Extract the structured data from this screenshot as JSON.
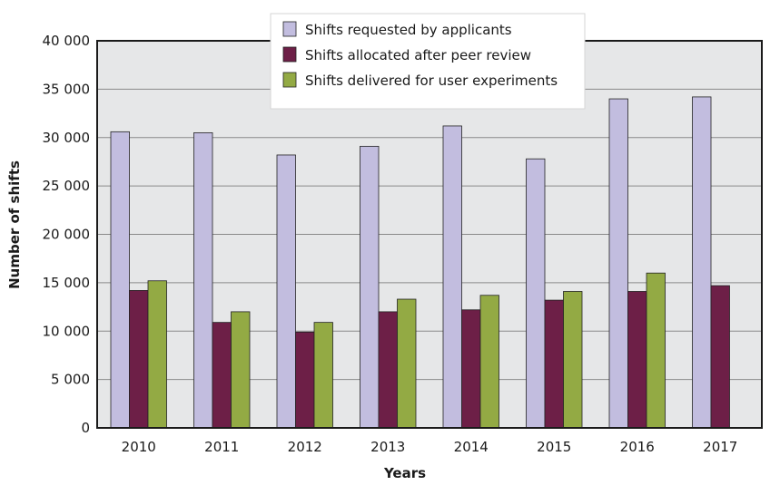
{
  "chart_data": {
    "type": "bar",
    "title": "",
    "xlabel": "Years",
    "ylabel": "Number of shifts",
    "ylim": [
      0,
      40000
    ],
    "yticks": [
      0,
      5000,
      10000,
      15000,
      20000,
      25000,
      30000,
      35000,
      40000
    ],
    "ytick_labels": [
      "0",
      "5 000",
      "10 000",
      "15 000",
      "20 000",
      "25 000",
      "30 000",
      "35 000",
      "40 000"
    ],
    "grid": true,
    "legend_position": "top-center",
    "categories": [
      "2010",
      "2011",
      "2012",
      "2013",
      "2014",
      "2015",
      "2016",
      "2017"
    ],
    "series": [
      {
        "name": "Shifts requested by applicants",
        "color": "#c2bddf",
        "values": [
          30600,
          30500,
          28200,
          29100,
          31200,
          27800,
          34000,
          34200
        ]
      },
      {
        "name": "Shifts allocated after peer review",
        "color": "#6d1f47",
        "values": [
          14200,
          10900,
          9900,
          12000,
          12200,
          13200,
          14100,
          14700
        ]
      },
      {
        "name": "Shifts delivered for user experiments",
        "color": "#93aa44",
        "values": [
          15200,
          12000,
          10900,
          13300,
          13700,
          14100,
          16000,
          null
        ]
      }
    ]
  }
}
